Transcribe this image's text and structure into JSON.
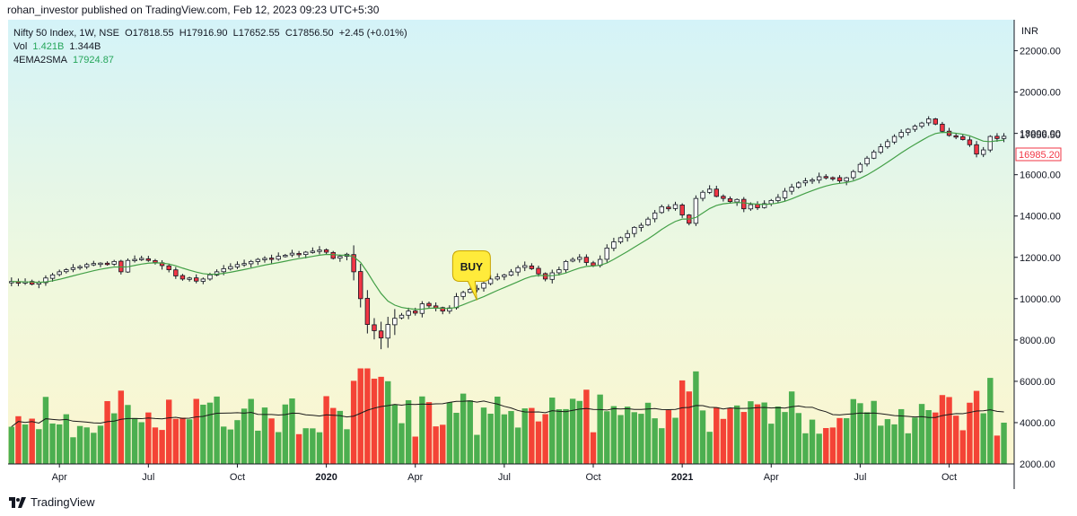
{
  "header": {
    "published_text": "rohan_investor published on TradingView.com, Feb 12, 2023 09:23 UTC+5:30"
  },
  "legend": {
    "symbol_text": "Nifty 50 Index, 1W, NSE",
    "open_label": "O",
    "open": "17818.55",
    "high_label": "H",
    "high": "17916.90",
    "low_label": "L",
    "low": "17652.55",
    "close_label": "C",
    "close": "17856.50",
    "change": "+2.45 (+0.01%)",
    "vol_label": "Vol",
    "vol_value": "1.421B",
    "vol_ma": "1.344B",
    "ema_label": "4EMA2SMA",
    "ema_value": "17924.87"
  },
  "footer": {
    "brand": "TradingView"
  },
  "colors": {
    "up": "#4caf50",
    "down": "#f23645",
    "vol_up": "#4caf50",
    "vol_down": "#f44336",
    "ma_line": "#43a047",
    "vol_ma_line": "#1a1a1a",
    "bg_top": "#d6f4f8",
    "bg_bottom": "#fbf6d2"
  },
  "chart_data": {
    "type": "candlestick",
    "timeframe": "1W",
    "currency": "INR",
    "price_axis": {
      "ticks": [
        2000,
        4000,
        6000,
        8000,
        10000,
        12000,
        14000,
        16000,
        18000,
        20000,
        22000
      ],
      "tick_labels": [
        "2000.00",
        "4000.00",
        "6000.00",
        "8000.00",
        "10000.00",
        "12000.00",
        "14000.00",
        "16000.00",
        "18000.00",
        "20000.00",
        "22000.00"
      ],
      "range": [
        2000,
        23500
      ],
      "last_price_label": "17856.50",
      "marker_label": "16985.20"
    },
    "time_axis": {
      "labels": [
        "Apr",
        "Jul",
        "Oct",
        "2020",
        "Apr",
        "Jul",
        "Oct",
        "2021",
        "Apr",
        "Jul",
        "Oct"
      ],
      "label_bar_index": [
        7,
        20,
        33,
        46,
        59,
        72,
        85,
        98,
        111,
        124,
        137
      ],
      "bold": [
        false,
        false,
        false,
        true,
        false,
        false,
        false,
        true,
        false,
        false,
        false
      ]
    },
    "closes": [
      10830,
      10750,
      10820,
      10700,
      10780,
      11000,
      11150,
      11300,
      11400,
      11500,
      11550,
      11650,
      11700,
      11720,
      11680,
      11800,
      11300,
      11850,
      11900,
      11950,
      11850,
      11750,
      11600,
      11400,
      11100,
      10950,
      11000,
      10850,
      10950,
      11150,
      11300,
      11450,
      11550,
      11650,
      11700,
      11800,
      11900,
      11950,
      11900,
      12050,
      12100,
      12200,
      12150,
      12250,
      12300,
      12350,
      12250,
      11950,
      12050,
      12150,
      11300,
      10000,
      8750,
      8450,
      8100,
      8750,
      9050,
      9200,
      9400,
      9300,
      9750,
      9650,
      9550,
      9400,
      9550,
      10100,
      10300,
      10450,
      10500,
      10750,
      10950,
      11050,
      11150,
      11300,
      11500,
      11600,
      11450,
      11200,
      10950,
      11250,
      11400,
      11800,
      11900,
      12000,
      11750,
      11600,
      11900,
      12450,
      12750,
      12950,
      13150,
      13450,
      13550,
      13850,
      14150,
      14450,
      14350,
      14550,
      14050,
      13650,
      14850,
      15150,
      15300,
      14950,
      14850,
      14700,
      14800,
      14350,
      14550,
      14400,
      14600,
      14750,
      14900,
      15200,
      15400,
      15600,
      15700,
      15750,
      15900,
      15850,
      15850,
      15700,
      15850,
      16150,
      16500,
      16800,
      17100,
      17350,
      17600,
      17850,
      18050,
      18200,
      18350,
      18500,
      18700,
      18450,
      18100,
      17900,
      17850,
      17700,
      17450,
      17000,
      17200,
      17850,
      17750,
      17856.5
    ],
    "volume_axis": {
      "range": [
        2000,
        6500
      ],
      "ticks": [
        2000,
        4000,
        6000
      ]
    },
    "series": [
      {
        "name": "4EMA2SMA",
        "type": "line",
        "last": 17924.87
      },
      {
        "name": "Vol",
        "type": "bar",
        "last": "1.421B",
        "ma": "1.344B"
      }
    ],
    "annotations": [
      {
        "text": "BUY",
        "bar_index": 68,
        "price": 10100,
        "color": "#ffeb3b"
      }
    ]
  }
}
